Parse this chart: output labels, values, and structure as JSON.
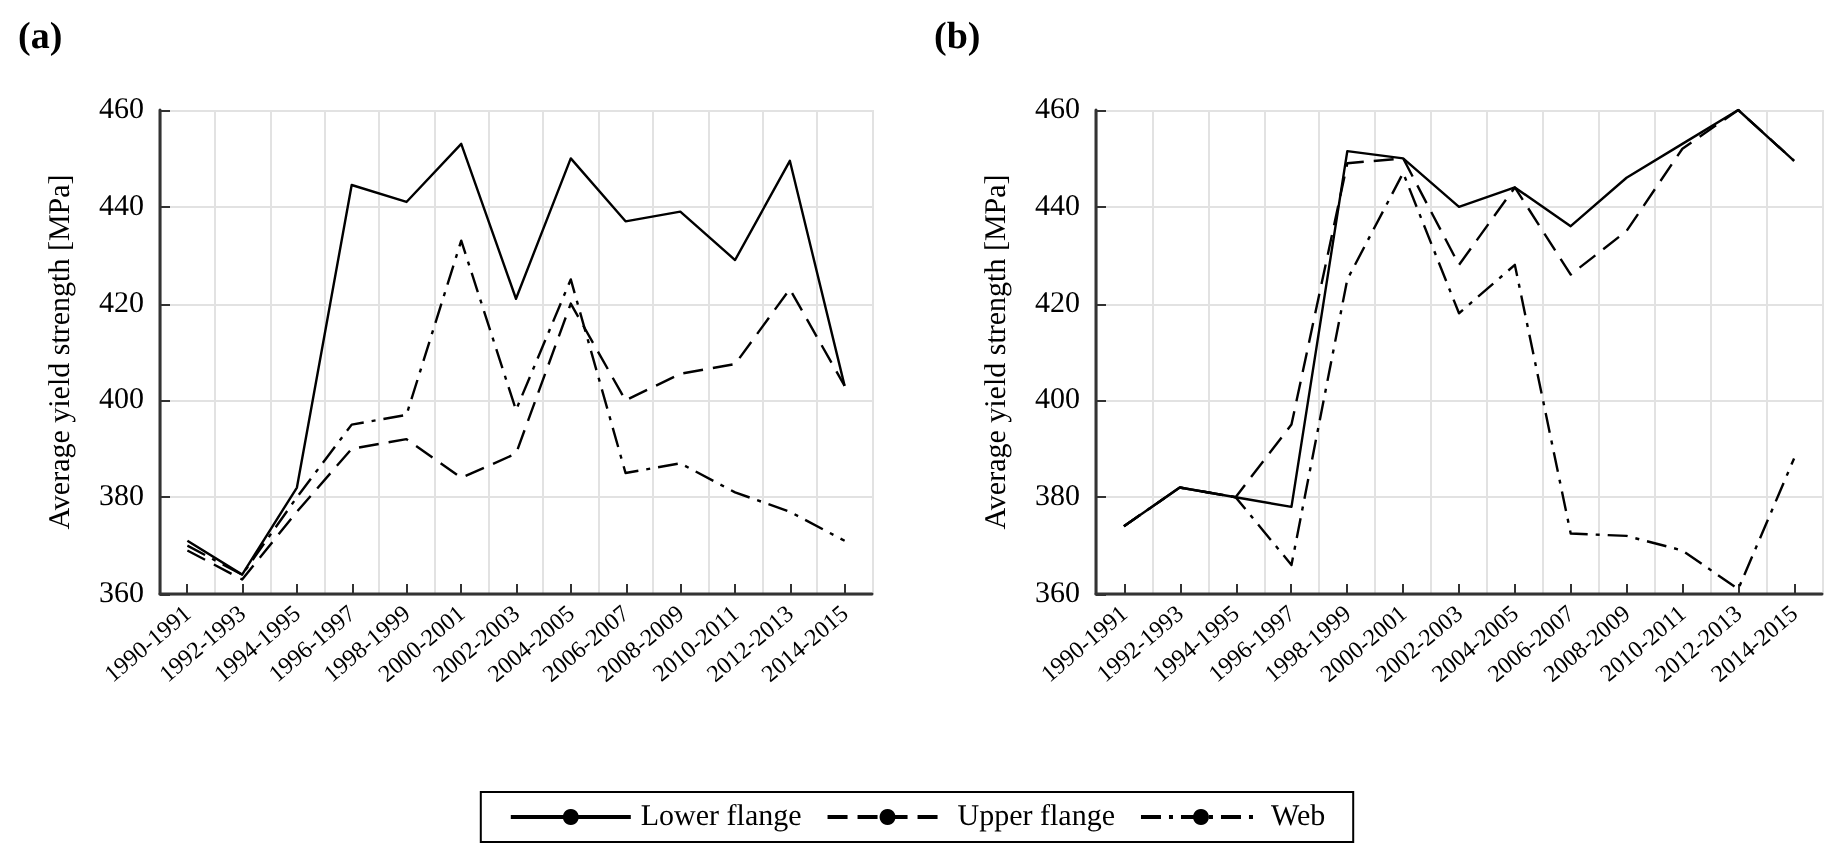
{
  "chart_data": [
    {
      "type": "line",
      "title": "(a)",
      "ylabel": "Average yield strength [MPa]",
      "categories": [
        "1990-1991",
        "1992-1993",
        "1994-1995",
        "1996-1997",
        "1998-1999",
        "2000-2001",
        "2002-2003",
        "2004-2005",
        "2006-2007",
        "2008-2009",
        "2010-2011",
        "2012-2013",
        "2014-2015"
      ],
      "series": [
        {
          "color": "#000000",
          "line_style": "solid",
          "values": [
            371,
            364,
            382,
            444.5,
            441,
            453,
            421,
            450,
            437,
            439,
            429,
            449.5,
            403
          ]
        },
        {
          "color": "#000000",
          "line_style": "dashed",
          "values": [
            369,
            363,
            377,
            390,
            392,
            384,
            389,
            420,
            400,
            405.5,
            407.5,
            423,
            403
          ]
        },
        {
          "color": "#000000",
          "line_style": "dashdot",
          "values": [
            370,
            364,
            380,
            395,
            397,
            433,
            398,
            425,
            385,
            387,
            381,
            377,
            371
          ]
        }
      ],
      "ylim": [
        360,
        460
      ],
      "yticks": [
        360,
        380,
        400,
        420,
        440,
        460
      ],
      "grid": true,
      "marker": "none"
    },
    {
      "type": "line",
      "title": "(b)",
      "ylabel": "Average yield strength [MPa]",
      "categories": [
        "1990-1991",
        "1992-1993",
        "1994-1995",
        "1996-1997",
        "1998-1999",
        "2000-2001",
        "2002-2003",
        "2004-2005",
        "2006-2007",
        "2008-2009",
        "2010-2011",
        "2012-2013",
        "2014-2015"
      ],
      "series": [
        {
          "name": "Lower flange",
          "color": "#000000",
          "line_style": "solid",
          "values": [
            374,
            382,
            380,
            378,
            451.5,
            450,
            440,
            444,
            436,
            446,
            453,
            460,
            449.5
          ]
        },
        {
          "name": "Upper flange",
          "color": "#000000",
          "line_style": "dashed",
          "values": [
            374,
            382,
            380,
            395,
            449,
            450,
            428,
            444,
            426,
            435,
            452,
            460,
            449.5
          ]
        },
        {
          "name": "Web",
          "color": "#000000",
          "line_style": "dashdot",
          "values": [
            374,
            382,
            380,
            366,
            425,
            447,
            418,
            428,
            372.5,
            372,
            369,
            361,
            388
          ]
        }
      ],
      "ylim": [
        360,
        460
      ],
      "yticks": [
        360,
        380,
        400,
        420,
        440,
        460
      ],
      "grid": true,
      "legend": "bottom",
      "marker": "none"
    }
  ]
}
